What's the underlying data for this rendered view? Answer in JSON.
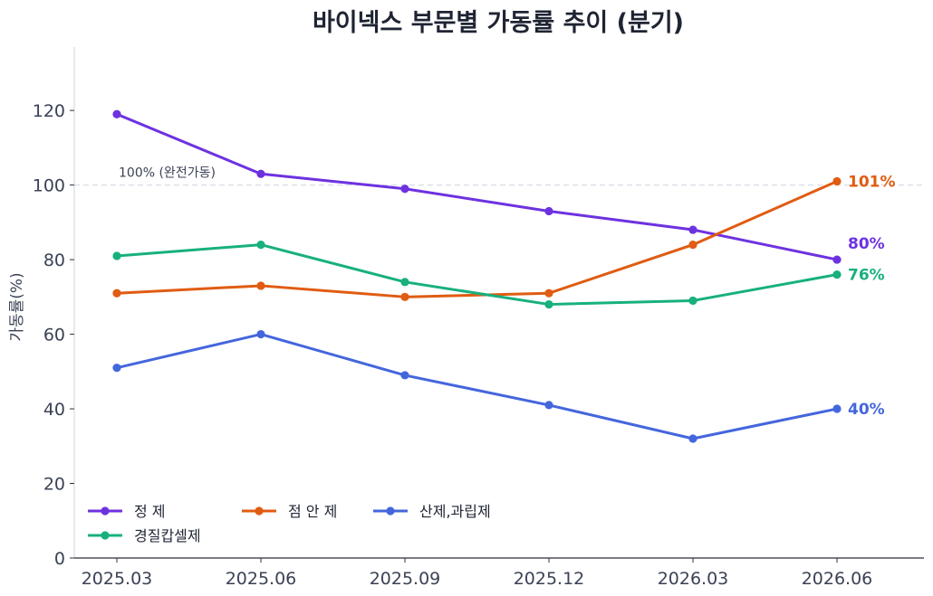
{
  "chart_data": {
    "type": "line",
    "title": "바이넥스 부문별 가동률 추이 (분기)",
    "xlabel": "",
    "ylabel": "가동률(%)",
    "categories": [
      "2025.03",
      "2025.06",
      "2025.09",
      "2025.12",
      "2026.03",
      "2026.06"
    ],
    "ylim": [
      0,
      137
    ],
    "yticks": [
      0,
      20,
      40,
      60,
      80,
      100,
      120
    ],
    "grid": false,
    "legend_position": "bottom-left",
    "reference_line": {
      "y": 100,
      "label": "100% (완전가동)"
    },
    "series": [
      {
        "name": "정 제",
        "color": "#6d32e0",
        "values": [
          119,
          103,
          99,
          93,
          88,
          80
        ],
        "end_label": "80%"
      },
      {
        "name": "점 안 제",
        "color": "#e05c12",
        "values": [
          71,
          73,
          70,
          71,
          84,
          101
        ],
        "end_label": "101%"
      },
      {
        "name": "산제,과립제",
        "color": "#4466dd",
        "values": [
          51,
          60,
          49,
          41,
          32,
          40
        ],
        "end_label": "40%"
      },
      {
        "name": "경질캅셀제",
        "color": "#17b07e",
        "values": [
          81,
          84,
          74,
          68,
          69,
          76
        ],
        "end_label": "76%"
      }
    ]
  }
}
